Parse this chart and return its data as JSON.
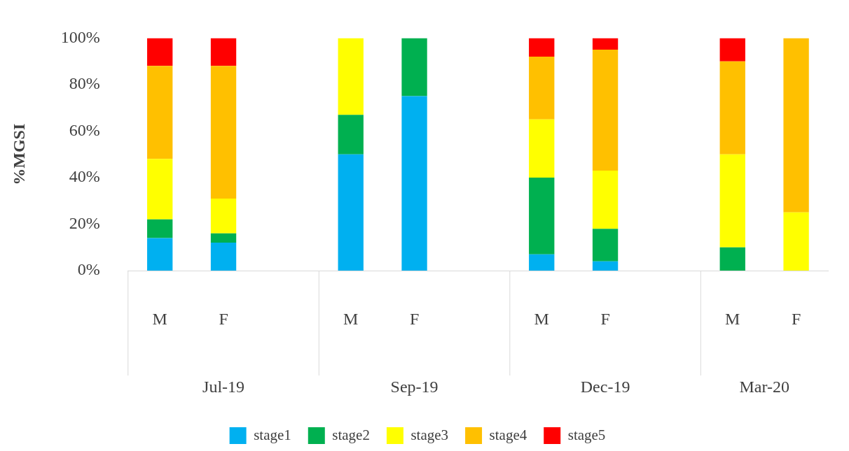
{
  "chart_data": {
    "type": "bar",
    "stacked": true,
    "ylabel": "%MGSI",
    "categories": [
      "M",
      "F",
      null,
      "M",
      "F",
      null,
      "M",
      "F",
      null,
      "M",
      "F"
    ],
    "series": [
      {
        "name": "stage1",
        "color": "#00b0f0",
        "values": [
          14,
          12,
          null,
          50,
          75,
          null,
          7,
          4,
          null,
          0,
          0
        ]
      },
      {
        "name": "stage2",
        "color": "#00b050",
        "values": [
          8,
          4,
          null,
          17,
          25,
          null,
          33,
          14,
          null,
          10,
          0
        ]
      },
      {
        "name": "stage3",
        "color": "#ffff00",
        "values": [
          26,
          15,
          null,
          33,
          0,
          null,
          25,
          25,
          null,
          40,
          25
        ]
      },
      {
        "name": "stage4",
        "color": "#ffc000",
        "values": [
          40,
          57,
          null,
          0,
          0,
          null,
          27,
          52,
          null,
          40,
          75
        ]
      },
      {
        "name": "stage5",
        "color": "#ff0000",
        "values": [
          12,
          12,
          null,
          0,
          0,
          null,
          8,
          5,
          null,
          10,
          0
        ]
      }
    ],
    "ylim": [
      0,
      100
    ],
    "yticks": [
      {
        "value": 0,
        "label": "0%"
      },
      {
        "value": 20,
        "label": "20%"
      },
      {
        "value": 40,
        "label": "40%"
      },
      {
        "value": 60,
        "label": "60%"
      },
      {
        "value": 80,
        "label": "80%"
      },
      {
        "value": 100,
        "label": "100%"
      }
    ],
    "annotations": [
      "Jul-19",
      "Sep-19",
      "Dec-19",
      "Mar-20"
    ],
    "grid": false,
    "legend": "bottom"
  }
}
